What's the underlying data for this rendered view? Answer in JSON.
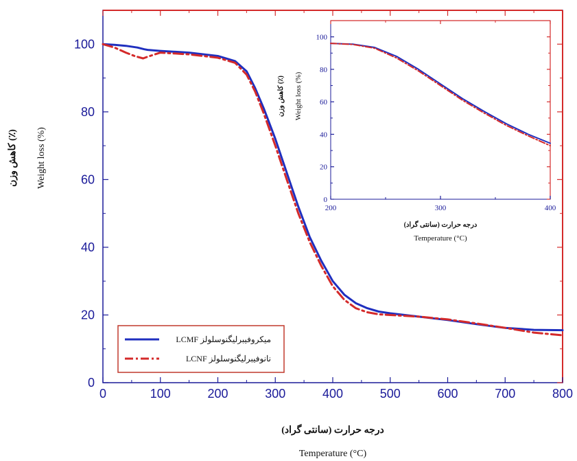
{
  "chart_data": [
    {
      "type": "line",
      "xlabel_fa": "درجه حرارت (سانتی گراد)",
      "xlabel_en": "Temperature (°C)",
      "ylabel_fa": "کاهش وزن (٪)",
      "ylabel_en": "Weight loss (%)",
      "xlim": [
        0,
        800
      ],
      "ylim": [
        0,
        110
      ],
      "x_ticks": [
        "0",
        "100",
        "200",
        "300",
        "400",
        "500",
        "600",
        "700",
        "800"
      ],
      "y_ticks": [
        "0",
        "20",
        "40",
        "60",
        "80",
        "100"
      ],
      "legend": {
        "position": "bottom-left"
      },
      "series": [
        {
          "name": "LCMF میکروفیبرلیگنوسلولز",
          "color": "#1f2fbf",
          "style": "solid",
          "x": [
            0,
            20,
            40,
            60,
            72,
            78,
            100,
            150,
            200,
            230,
            250,
            265,
            280,
            300,
            320,
            340,
            360,
            380,
            400,
            420,
            440,
            460,
            480,
            500,
            550,
            600,
            650,
            700,
            750,
            800
          ],
          "y": [
            100,
            99.8,
            99.5,
            99.0,
            98.5,
            98.3,
            98.0,
            97.5,
            96.5,
            95.0,
            92.0,
            87.0,
            81.0,
            72.0,
            62.0,
            52.0,
            43.0,
            36.0,
            30.0,
            26.0,
            23.5,
            22.0,
            21.0,
            20.5,
            19.5,
            18.5,
            17.3,
            16.2,
            15.6,
            15.5
          ]
        },
        {
          "name": "LCNF نانوفیبرلیگنوسلولز",
          "color": "#d42a2a",
          "style": "dashdot",
          "x": [
            0,
            20,
            40,
            55,
            70,
            78,
            100,
            150,
            200,
            230,
            250,
            265,
            280,
            300,
            320,
            340,
            360,
            380,
            400,
            420,
            440,
            460,
            480,
            500,
            550,
            600,
            650,
            700,
            750,
            800
          ],
          "y": [
            100,
            99.0,
            97.5,
            96.5,
            95.8,
            96.3,
            97.5,
            97.0,
            96.0,
            94.5,
            91.0,
            86.0,
            79.5,
            70.0,
            60.0,
            50.0,
            41.5,
            34.5,
            28.5,
            24.5,
            22.0,
            20.8,
            20.2,
            20.0,
            19.5,
            18.7,
            17.5,
            16.2,
            14.8,
            14.0
          ]
        }
      ]
    },
    {
      "type": "line",
      "xlabel_fa": "درجه حرارت (سانتی گراد)",
      "xlabel_en": "Temperature (°C)",
      "ylabel_fa": "کاهش وزن (٪)",
      "ylabel_en": "Weight loss (%)",
      "xlim": [
        200,
        400
      ],
      "ylim": [
        0,
        110
      ],
      "x_ticks": [
        "200",
        "300",
        "400"
      ],
      "y_ticks": [
        "0",
        "20",
        "40",
        "60",
        "80",
        "100"
      ],
      "series": [
        {
          "name": "LCMF",
          "color": "#1f2fbf",
          "style": "solid",
          "x": [
            200,
            220,
            240,
            260,
            280,
            300,
            320,
            340,
            360,
            380,
            400
          ],
          "y": [
            96.0,
            95.5,
            93.5,
            88.0,
            80.0,
            71.0,
            62.0,
            54.0,
            46.5,
            40.0,
            34.5
          ]
        },
        {
          "name": "LCNF",
          "color": "#d42a2a",
          "style": "dashdot",
          "x": [
            200,
            220,
            240,
            260,
            280,
            300,
            320,
            340,
            360,
            380,
            400
          ],
          "y": [
            96.0,
            95.3,
            93.0,
            87.0,
            79.0,
            70.0,
            61.0,
            53.0,
            45.5,
            39.0,
            33.0
          ]
        }
      ]
    }
  ]
}
